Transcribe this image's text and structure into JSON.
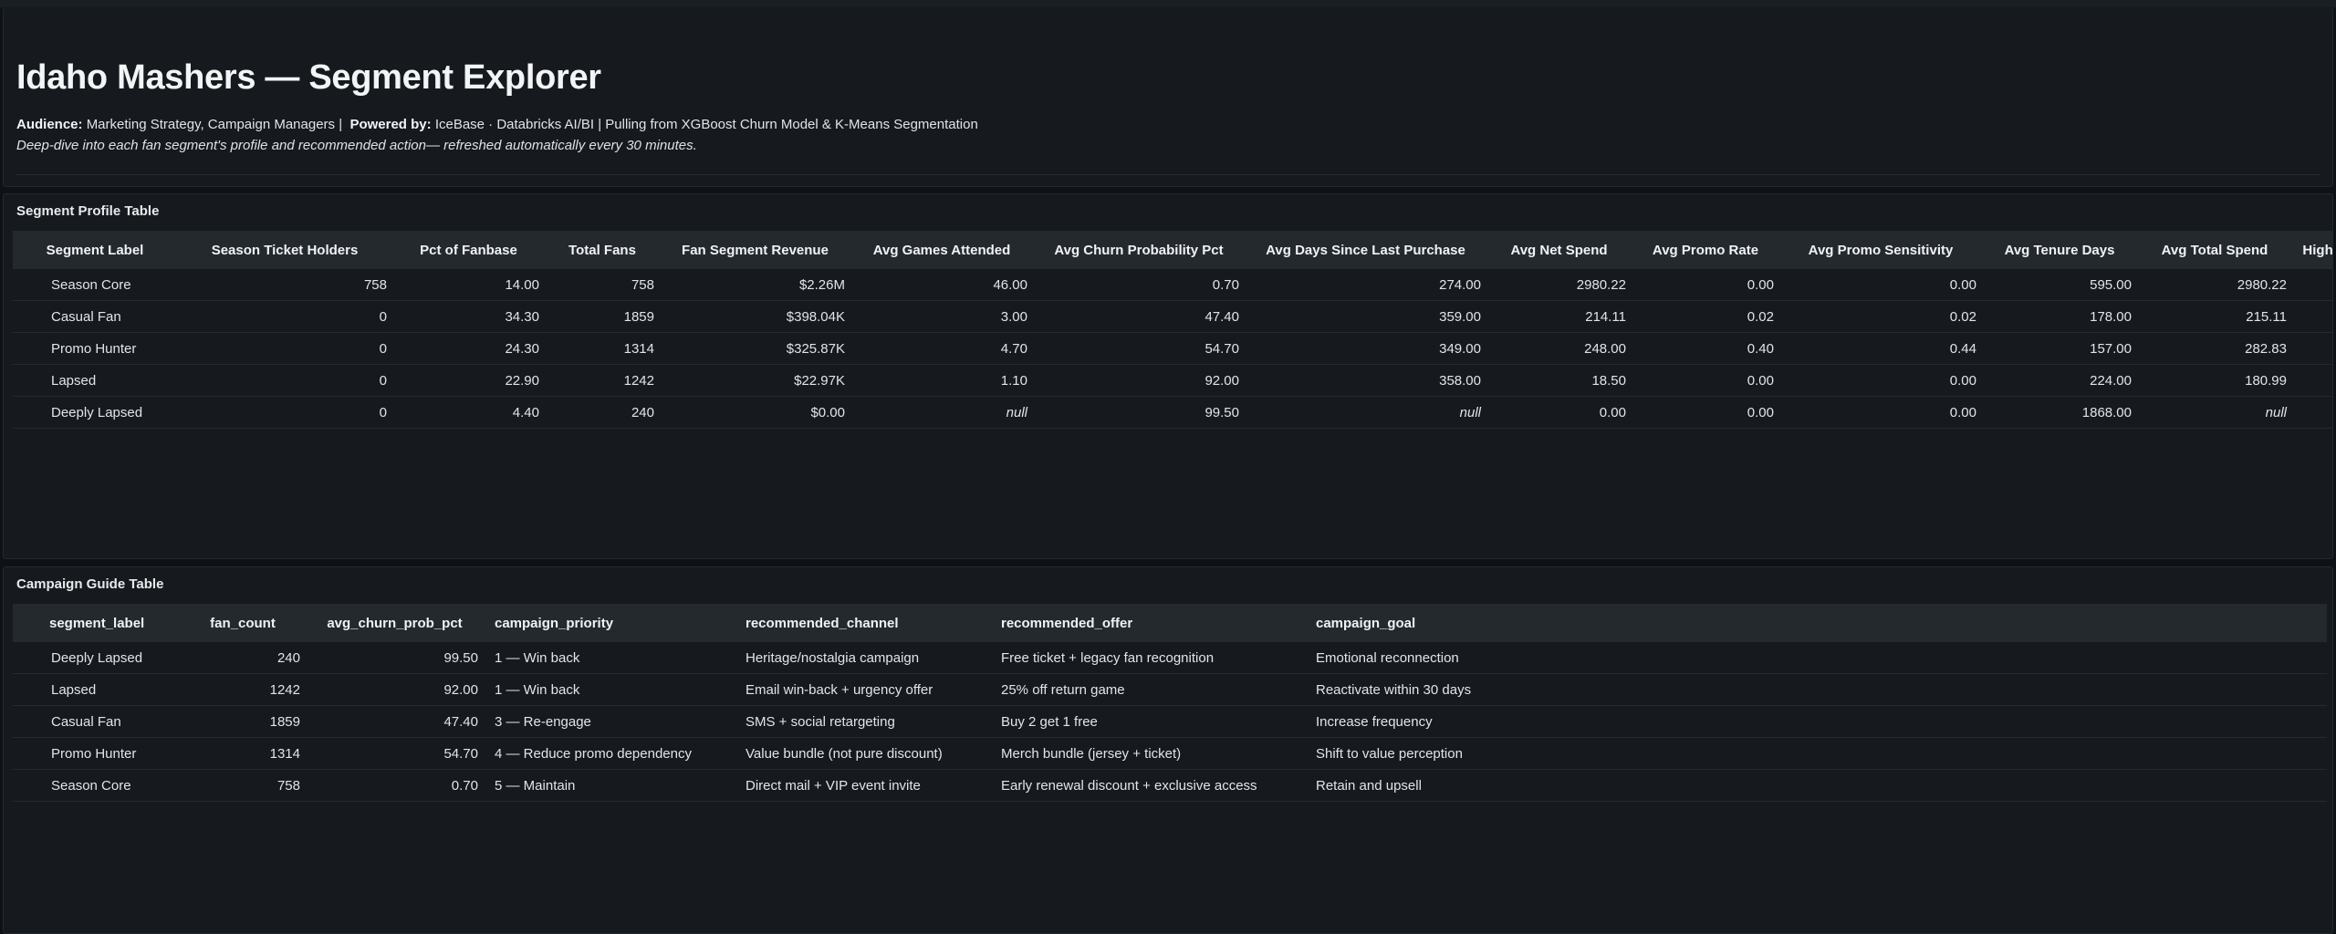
{
  "header": {
    "title": "Idaho Mashers — Segment Explorer",
    "audience_label": "Audience:",
    "audience_value": "Marketing Strategy, Campaign Managers |",
    "powered_label": "Powered by:",
    "powered_value": "IceBase · Databricks AI/BI | Pulling from XGBoost Churn Model & K-Means Segmentation",
    "description": "Deep-dive into each fan segment's profile and recommended action— refreshed automatically every 30 minutes."
  },
  "profile_table": {
    "title": "Segment Profile Table",
    "columns": [
      "Segment Label",
      "Season Ticket Holders",
      "Pct of Fanbase",
      "Total Fans",
      "Fan Segment Revenue",
      "Avg Games Attended",
      "Avg Churn Probability Pct",
      "Avg Days Since Last Purchase",
      "Avg Net Spend",
      "Avg Promo Rate",
      "Avg Promo Sensitivity",
      "Avg Tenure Days",
      "Avg Total Spend",
      "High Risk"
    ],
    "rows": [
      [
        "Season Core",
        "758",
        "14.00",
        "758",
        "$2.26M",
        "46.00",
        "0.70",
        "274.00",
        "2980.22",
        "0.00",
        "0.00",
        "595.00",
        "2980.22",
        ""
      ],
      [
        "Casual Fan",
        "0",
        "34.30",
        "1859",
        "$398.04K",
        "3.00",
        "47.40",
        "359.00",
        "214.11",
        "0.02",
        "0.02",
        "178.00",
        "215.11",
        ""
      ],
      [
        "Promo Hunter",
        "0",
        "24.30",
        "1314",
        "$325.87K",
        "4.70",
        "54.70",
        "349.00",
        "248.00",
        "0.40",
        "0.44",
        "157.00",
        "282.83",
        ""
      ],
      [
        "Lapsed",
        "0",
        "22.90",
        "1242",
        "$22.97K",
        "1.10",
        "92.00",
        "358.00",
        "18.50",
        "0.00",
        "0.00",
        "224.00",
        "180.99",
        ""
      ],
      [
        "Deeply Lapsed",
        "0",
        "4.40",
        "240",
        "$0.00",
        "null",
        "99.50",
        "null",
        "0.00",
        "0.00",
        "0.00",
        "1868.00",
        "null",
        ""
      ]
    ]
  },
  "campaign_table": {
    "title": "Campaign Guide Table",
    "columns": [
      "segment_label",
      "fan_count",
      "avg_churn_prob_pct",
      "campaign_priority",
      "recommended_channel",
      "recommended_offer",
      "campaign_goal"
    ],
    "rows": [
      [
        "Deeply Lapsed",
        "240",
        "99.50",
        "1 — Win back",
        "Heritage/nostalgia campaign",
        "Free ticket + legacy fan recognition",
        "Emotional reconnection"
      ],
      [
        "Lapsed",
        "1242",
        "92.00",
        "1 — Win back",
        "Email win-back + urgency offer",
        "25% off return game",
        "Reactivate within 30 days"
      ],
      [
        "Casual Fan",
        "1859",
        "47.40",
        "3 — Re-engage",
        "SMS + social retargeting",
        "Buy 2 get 1 free",
        "Increase frequency"
      ],
      [
        "Promo Hunter",
        "1314",
        "54.70",
        "4 — Reduce promo dependency",
        "Value bundle (not pure discount)",
        "Merch bundle (jersey + ticket)",
        "Shift to value perception"
      ],
      [
        "Season Core",
        "758",
        "0.70",
        "5 — Maintain",
        "Direct mail + VIP event invite",
        "Early renewal discount + exclusive access",
        "Retain and upsell"
      ]
    ]
  }
}
